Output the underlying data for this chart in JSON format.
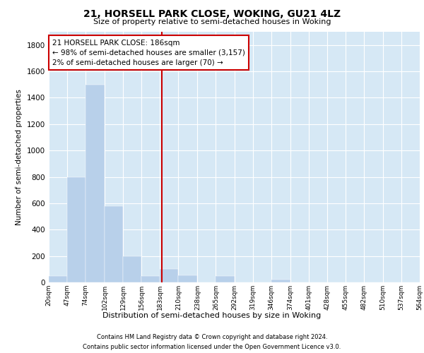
{
  "title": "21, HORSELL PARK CLOSE, WOKING, GU21 4LZ",
  "subtitle": "Size of property relative to semi-detached houses in Woking",
  "xlabel": "Distribution of semi-detached houses by size in Woking",
  "ylabel": "Number of semi-detached properties",
  "footer_line1": "Contains HM Land Registry data © Crown copyright and database right 2024.",
  "footer_line2": "Contains public sector information licensed under the Open Government Licence v3.0.",
  "annotation_line1": "21 HORSELL PARK CLOSE: 186sqm",
  "annotation_line2": "← 98% of semi-detached houses are smaller (3,157)",
  "annotation_line3": "2% of semi-detached houses are larger (70) →",
  "property_size": 186,
  "bin_edges": [
    20,
    47,
    74,
    102,
    129,
    156,
    183,
    210,
    238,
    265,
    292,
    319,
    346,
    374,
    401,
    428,
    455,
    482,
    510,
    537,
    564
  ],
  "bin_counts": [
    50,
    800,
    1500,
    580,
    200,
    50,
    100,
    55,
    0,
    50,
    0,
    0,
    20,
    0,
    0,
    0,
    0,
    0,
    0,
    0
  ],
  "bar_color": "#b8d0ea",
  "grid_color": "#ffffff",
  "bg_color": "#d6e8f5",
  "annotation_box_color": "#ffffff",
  "annotation_box_edge": "#cc0000",
  "vline_color": "#cc0000",
  "ylim_max": 1900,
  "yticks": [
    0,
    200,
    400,
    600,
    800,
    1000,
    1200,
    1400,
    1600,
    1800
  ]
}
